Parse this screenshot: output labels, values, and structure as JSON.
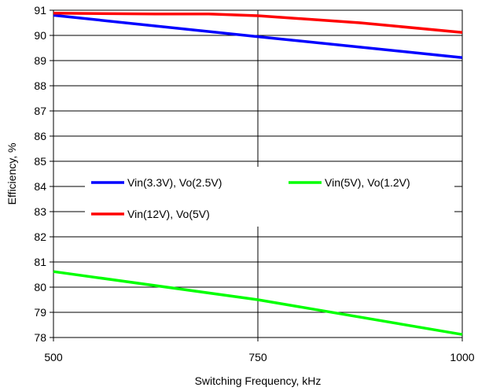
{
  "chart_data": {
    "type": "line",
    "xlabel": "Switching Frequency, kHz",
    "ylabel": "Efficiency, %",
    "xlim": [
      500,
      1000
    ],
    "ylim": [
      78,
      91
    ],
    "x_ticks": [
      500,
      750,
      1000
    ],
    "y_ticks": [
      78,
      79,
      80,
      81,
      82,
      83,
      84,
      85,
      86,
      87,
      88,
      89,
      90,
      91
    ],
    "grid": "horizontal lines at each y tick; vertical line at 750",
    "legend_position": "inside-middle",
    "series": [
      {
        "name": "Vin(3.3V), Vo(2.5V)",
        "color": "#0000ff",
        "x": [
          500,
          750,
          1000
        ],
        "y": [
          90.8,
          89.95,
          89.12
        ]
      },
      {
        "name": "Vin(5V), Vo(1.2V)",
        "color": "#00ff00",
        "x": [
          500,
          750,
          1000
        ],
        "y": [
          80.62,
          79.5,
          78.12
        ]
      },
      {
        "name": "Vin(12V), Vo(5V)",
        "color": "#ff0000",
        "x": [
          500,
          625,
          690,
          750,
          875,
          1000
        ],
        "y": [
          90.88,
          90.85,
          90.85,
          90.78,
          90.5,
          90.12
        ]
      }
    ]
  }
}
